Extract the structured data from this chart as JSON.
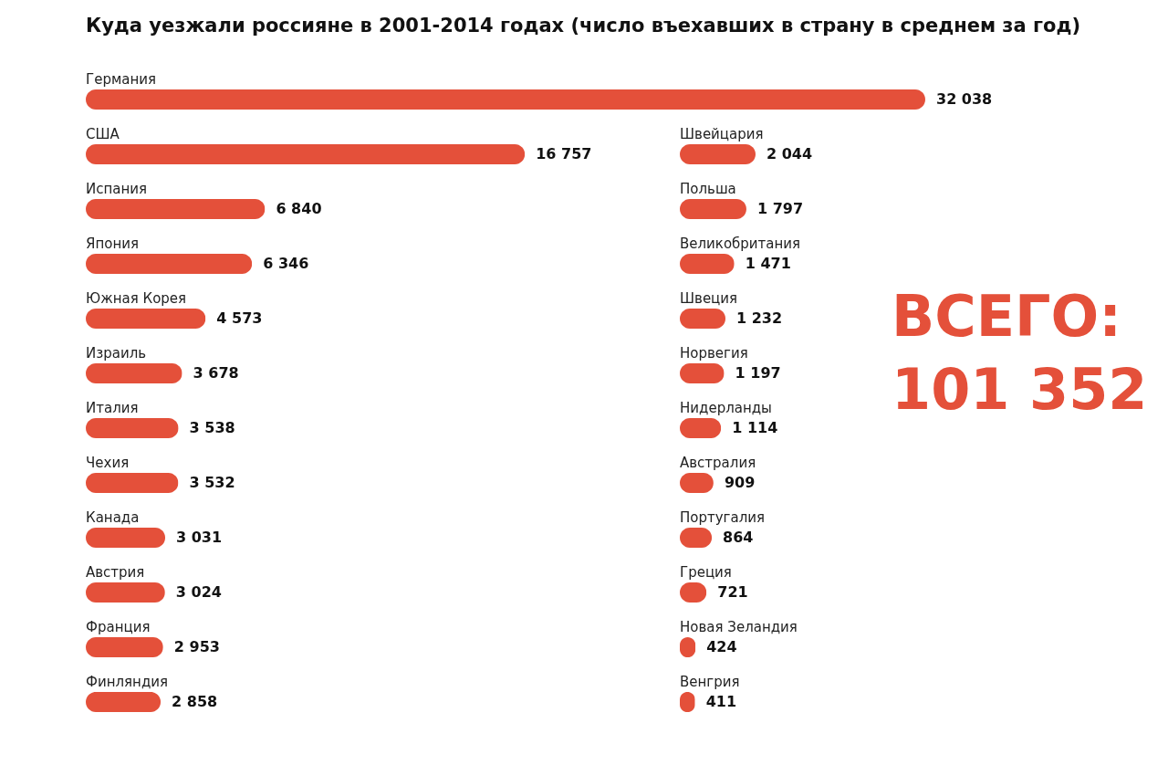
{
  "chart_data": [
    {
      "type": "bar",
      "orientation": "horizontal",
      "title": "Куда уезжали россияне в 2001-2014 годах (число въехавших в страну в среднем за год)",
      "categories": [
        "Германия",
        "США",
        "Испания",
        "Япония",
        "Южная Корея",
        "Израиль",
        "Италия",
        "Чехия",
        "Канада",
        "Австрия",
        "Франция",
        "Финляндия"
      ],
      "values": [
        32038,
        16757,
        6840,
        6346,
        4573,
        3678,
        3538,
        3532,
        3031,
        3024,
        2953,
        2858
      ],
      "color": "#e4503a",
      "data_labels": true
    },
    {
      "type": "bar",
      "orientation": "horizontal",
      "categories": [
        "Швейцария",
        "Польша",
        "Великобритания",
        "Швеция",
        "Норвегия",
        "Нидерланды",
        "Австралия",
        "Португалия",
        "Греция",
        "Новая Зеландия",
        "Венгрия"
      ],
      "values": [
        2044,
        1797,
        1471,
        1232,
        1197,
        1114,
        909,
        864,
        721,
        424,
        411
      ],
      "color": "#e4503a",
      "data_labels": true,
      "annotations": [
        "ВСЕГО:\n101 352"
      ]
    }
  ]
}
